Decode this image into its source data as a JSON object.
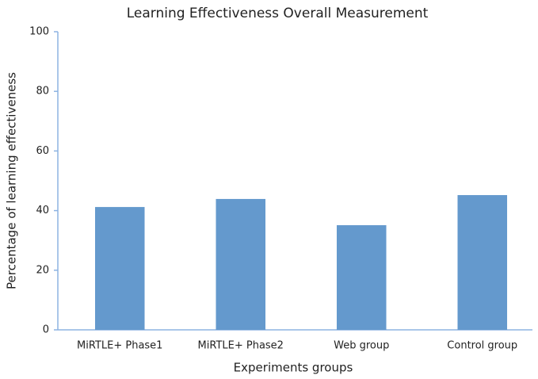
{
  "chart_data": {
    "type": "bar",
    "title": "Learning Effectiveness Overall Measurement",
    "x_label": "Experiments groups",
    "y_label": "Percentage of learning effectiveness",
    "categories": [
      "MiRTLE+ Phase1",
      "MiRTLE+ Phase2",
      "Web group",
      "Control group"
    ],
    "values": [
      41.2,
      43.9,
      35.1,
      45.2
    ],
    "color": "#6499cd",
    "ylim": [
      0,
      100
    ],
    "yticks": [
      0,
      20,
      40,
      60,
      80,
      100
    ],
    "grid": false
  }
}
